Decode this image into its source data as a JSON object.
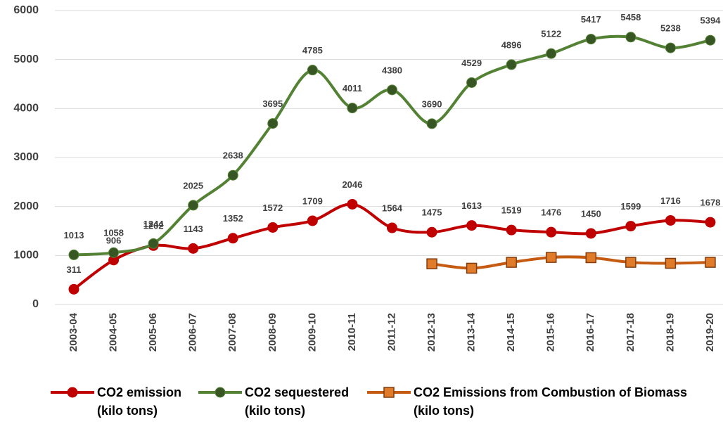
{
  "chart_data": {
    "type": "line",
    "categories": [
      "2003-04",
      "2004-05",
      "2005-06",
      "2006-07",
      "2007-08",
      "2008-09",
      "2009-10",
      "2010-11",
      "2011-12",
      "2012-13",
      "2013-14",
      "2014-15",
      "2015-16",
      "2016-17",
      "2017-18",
      "2018-19",
      "2019-20"
    ],
    "series": [
      {
        "name": "CO2 emission (kilo tons)",
        "color": "#c00000",
        "marker": "circle",
        "data_labels": true,
        "values": [
          311,
          906,
          1202,
          1143,
          1352,
          1572,
          1709,
          2046,
          1564,
          1475,
          1613,
          1519,
          1476,
          1450,
          1599,
          1716,
          1678
        ]
      },
      {
        "name": "CO2 sequestered (kilo tons)",
        "color": "#548235",
        "marker": "circle",
        "data_labels": true,
        "values": [
          1013,
          1058,
          1244,
          2025,
          2638,
          3695,
          4785,
          4011,
          4380,
          3690,
          4529,
          4896,
          5122,
          5417,
          5458,
          5238,
          5394
        ]
      },
      {
        "name": "CO2 Emissions from Combustion of Biomass (kilo tons)",
        "color": "#c55a11",
        "marker": "square",
        "data_labels": false,
        "values": [
          null,
          null,
          null,
          null,
          null,
          null,
          null,
          null,
          null,
          830,
          740,
          860,
          960,
          955,
          860,
          840,
          860
        ]
      }
    ],
    "ylim": [
      0,
      6000
    ],
    "yticks": [
      0,
      1000,
      2000,
      3000,
      4000,
      5000,
      6000
    ],
    "grid": true,
    "smooth": true,
    "legend": "bottom"
  }
}
